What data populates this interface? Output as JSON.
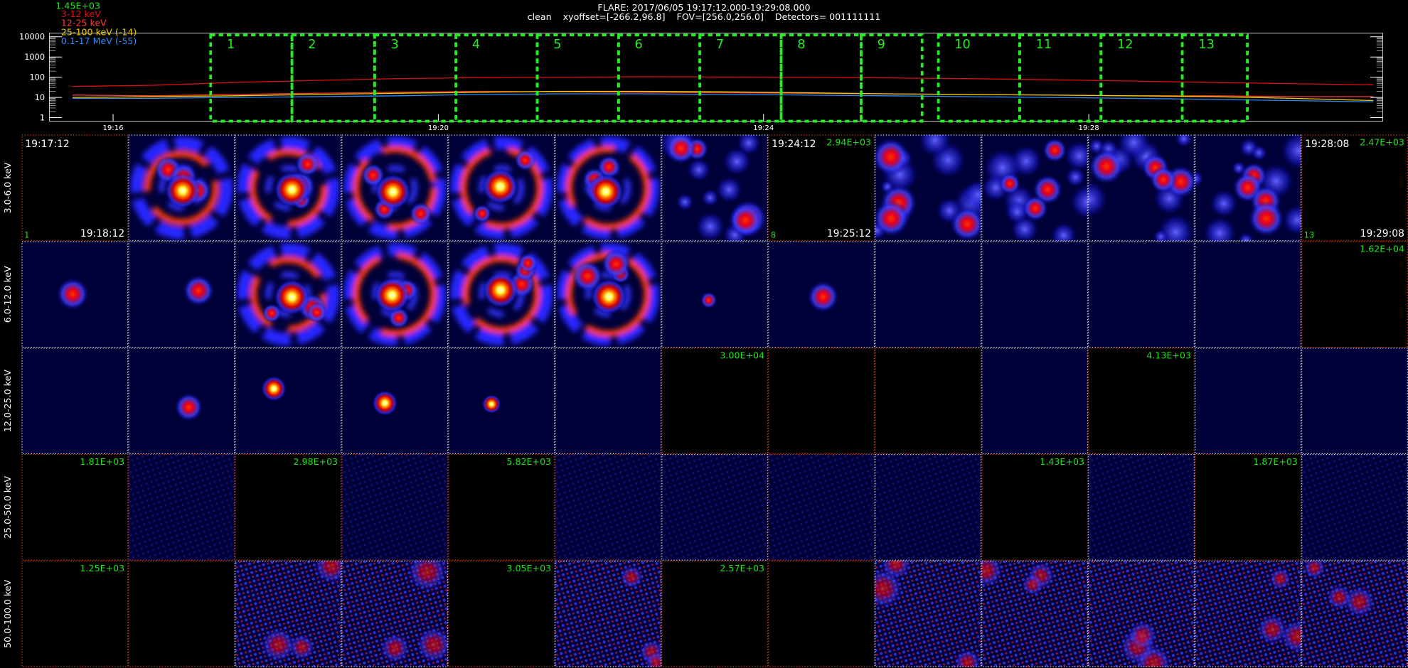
{
  "header": {
    "line1": "FLARE: 2017/06/05 19:17:12.000-19:29:08.000",
    "line2": "clean    xyoffset=[-266.2,96.8]    FOV=[256.0,256.0]    Detectors= 001111111"
  },
  "chart_data": {
    "type": "line",
    "log_y": true,
    "annotation": "1.45E+03",
    "ylim": [
      1,
      10000
    ],
    "yticks": [
      1,
      10,
      100,
      1000,
      10000
    ],
    "xlim": [
      "19:15:13",
      "19:31:37"
    ],
    "xticks": [
      "19:16",
      "19:20",
      "19:24",
      "19:28"
    ],
    "x": [
      "19:15:30",
      "19:16:30",
      "19:17:30",
      "19:18:30",
      "19:19:30",
      "19:20:30",
      "19:21:30",
      "19:22:30",
      "19:23:30",
      "19:24:30",
      "19:25:30",
      "19:26:30",
      "19:27:30",
      "19:28:30",
      "19:29:30",
      "19:30:30",
      "19:31:30"
    ],
    "series": [
      {
        "name": "3-12 keV",
        "color": "#e01010",
        "values": [
          35,
          40,
          55,
          70,
          85,
          95,
          100,
          105,
          103,
          100,
          92,
          85,
          75,
          65,
          55,
          48,
          42
        ]
      },
      {
        "name": "12-25 keV",
        "color": "#ff3a3a",
        "values": [
          13,
          12,
          14,
          16,
          18,
          20,
          19,
          18,
          17,
          16,
          15,
          14,
          13,
          12,
          12,
          11,
          11
        ]
      },
      {
        "name": "25-100 keV (-14)",
        "color": "#f0d000",
        "values": [
          10,
          11,
          12,
          14,
          16,
          18,
          20,
          20,
          19,
          17,
          15,
          14,
          13,
          12,
          11,
          9,
          7
        ]
      },
      {
        "name": "0.1-17 MeV (-55)",
        "color": "#2a8cff",
        "values": [
          9,
          9,
          10,
          11,
          12,
          14,
          15,
          15,
          14,
          13,
          12,
          11,
          10,
          9,
          8,
          7,
          6
        ]
      }
    ],
    "intervals": [
      {
        "label": "1",
        "start": "19:17:12",
        "end": "19:18:12"
      },
      {
        "label": "2",
        "start": "19:18:12",
        "end": "19:19:13"
      },
      {
        "label": "3",
        "start": "19:19:13",
        "end": "19:20:13"
      },
      {
        "label": "4",
        "start": "19:20:13",
        "end": "19:21:13"
      },
      {
        "label": "5",
        "start": "19:21:13",
        "end": "19:22:13"
      },
      {
        "label": "6",
        "start": "19:22:13",
        "end": "19:23:13"
      },
      {
        "label": "7",
        "start": "19:23:13",
        "end": "19:24:13"
      },
      {
        "label": "8",
        "start": "19:24:13",
        "end": "19:25:12"
      },
      {
        "label": "9",
        "start": "19:25:12",
        "end": "19:25:57"
      },
      {
        "label": "10",
        "start": "19:26:09",
        "end": "19:27:09"
      },
      {
        "label": "11",
        "start": "19:27:09",
        "end": "19:28:09"
      },
      {
        "label": "12",
        "start": "19:28:09",
        "end": "19:29:09"
      },
      {
        "label": "13",
        "start": "19:29:09",
        "end": "19:29:57"
      }
    ]
  },
  "image_grid": {
    "rows": [
      {
        "energy": "3.0-6.0 keV",
        "max_labels": [
          null,
          null,
          null,
          null,
          null,
          null,
          null,
          "2.94E+03",
          null,
          null,
          null,
          null,
          "2.47E+03"
        ],
        "start_times": [
          "19:17:12",
          null,
          null,
          null,
          null,
          null,
          null,
          "19:24:12",
          null,
          null,
          null,
          null,
          "19:28:08"
        ],
        "end_times": [
          "19:18:12",
          null,
          null,
          null,
          null,
          null,
          null,
          "19:25:12",
          null,
          null,
          null,
          null,
          "19:29:08"
        ],
        "indices": [
          "1",
          null,
          null,
          null,
          null,
          null,
          null,
          "8",
          null,
          null,
          null,
          null,
          "13"
        ]
      },
      {
        "energy": "6.0-12.0 keV",
        "max_labels": [
          null,
          null,
          null,
          null,
          null,
          null,
          null,
          null,
          null,
          null,
          null,
          null,
          "1.62E+04"
        ]
      },
      {
        "energy": "12.0-25.0 keV",
        "max_labels": [
          null,
          null,
          null,
          null,
          null,
          null,
          "3.00E+04",
          null,
          null,
          null,
          "4.13E+03",
          null,
          null
        ]
      },
      {
        "energy": "25.0-50.0 keV",
        "max_labels": [
          "1.81E+03",
          null,
          "2.98E+03",
          null,
          "5.82E+03",
          null,
          null,
          null,
          null,
          "1.43E+03",
          null,
          "1.87E+03",
          null
        ]
      },
      {
        "energy": "50.0-100.0 keV",
        "max_labels": [
          "1.25E+03",
          null,
          null,
          null,
          "3.05E+03",
          null,
          "2.57E+03",
          null,
          null,
          null,
          null,
          null,
          null
        ]
      }
    ]
  }
}
